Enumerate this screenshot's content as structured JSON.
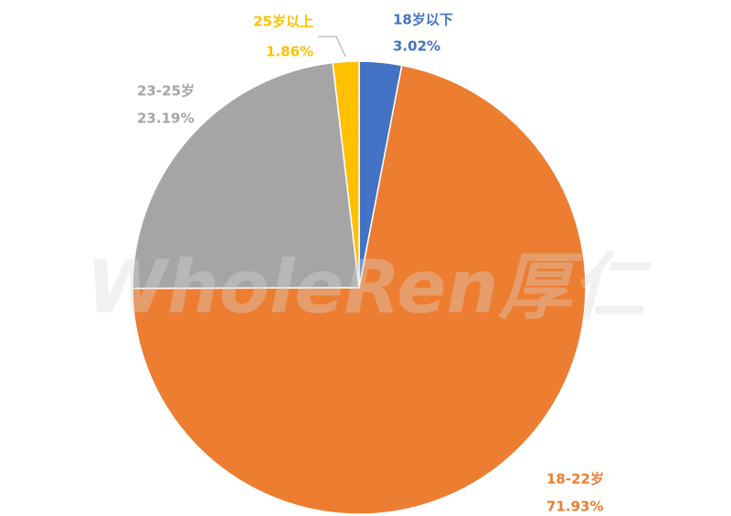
{
  "chart_data": {
    "type": "pie",
    "categories": [
      "18岁以下",
      "18-22岁",
      "23-25岁",
      "25岁以上"
    ],
    "values": [
      3.02,
      71.93,
      23.19,
      1.86
    ],
    "value_labels": [
      "3.02%",
      "71.93%",
      "23.19%",
      "1.86%"
    ],
    "colors": [
      "#4472c4",
      "#ed7d31",
      "#a5a5a5",
      "#ffc000"
    ],
    "watermark": "WholeRen厚仁"
  }
}
